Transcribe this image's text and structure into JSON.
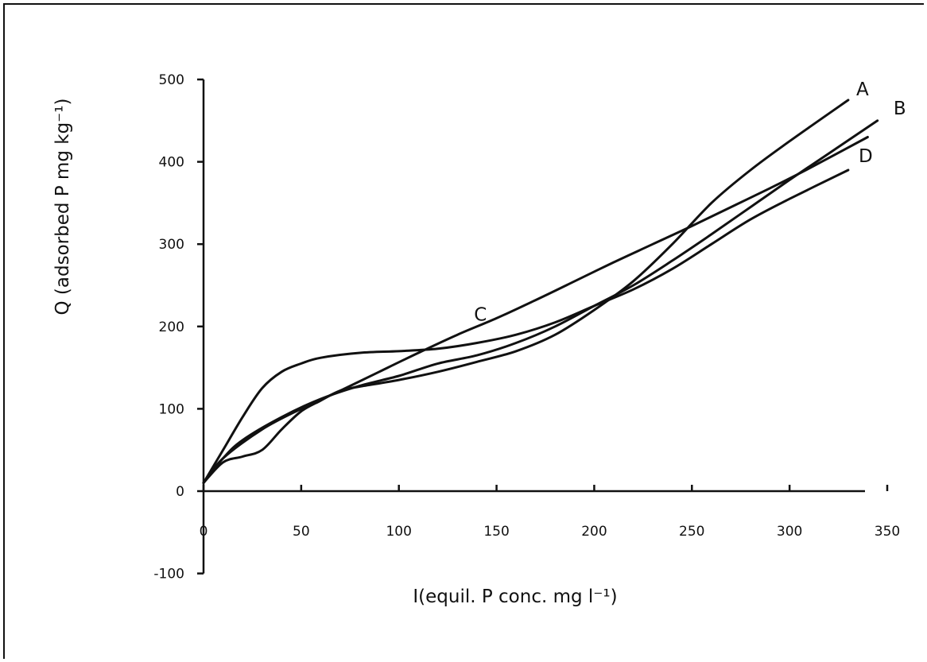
{
  "chart_data": {
    "type": "line",
    "title": "",
    "xlabel": "I(equil. P conc. mg l⁻¹)",
    "ylabel": "Q (adsorbed P mg kg⁻¹)",
    "xlim": [
      0,
      350
    ],
    "ylim": [
      -100,
      500
    ],
    "xticks": [
      0,
      50,
      100,
      150,
      200,
      250,
      300,
      350
    ],
    "yticks": [
      -100,
      0,
      100,
      200,
      300,
      400,
      500
    ],
    "xtick_labels": [
      "0",
      "50",
      "100",
      "150",
      "200",
      "250",
      "300",
      "350"
    ],
    "ytick_labels": [
      "-100",
      "0",
      "100",
      "200",
      "300",
      "400",
      "500"
    ],
    "grid": false,
    "legend": "none",
    "series": [
      {
        "name": "A",
        "x": [
          0,
          10,
          20,
          30,
          40,
          50,
          60,
          70,
          80,
          100,
          120,
          140,
          160,
          180,
          200,
          220,
          240,
          260,
          280,
          300,
          330
        ],
        "y": [
          10,
          35,
          42,
          50,
          75,
          97,
          110,
          122,
          127,
          135,
          145,
          157,
          170,
          190,
          220,
          255,
          300,
          350,
          390,
          425,
          475
        ]
      },
      {
        "name": "B",
        "x": [
          0,
          10,
          20,
          40,
          60,
          80,
          100,
          120,
          140,
          160,
          180,
          200,
          220,
          240,
          260,
          280,
          300,
          320,
          345
        ],
        "y": [
          10,
          40,
          62,
          90,
          112,
          128,
          140,
          155,
          165,
          180,
          200,
          225,
          250,
          280,
          312,
          345,
          378,
          410,
          450
        ]
      },
      {
        "name": "C",
        "x": [
          0,
          10,
          30,
          50,
          70,
          90,
          110,
          130,
          150,
          170,
          190,
          210,
          230,
          250,
          270,
          290,
          310,
          340
        ],
        "y": [
          10,
          40,
          75,
          100,
          122,
          145,
          168,
          190,
          210,
          232,
          255,
          278,
          300,
          322,
          345,
          368,
          392,
          430
        ]
      },
      {
        "name": "D",
        "x": [
          0,
          10,
          20,
          30,
          40,
          50,
          60,
          80,
          100,
          120,
          140,
          160,
          180,
          200,
          220,
          240,
          260,
          280,
          300,
          330
        ],
        "y": [
          10,
          50,
          90,
          125,
          145,
          155,
          162,
          168,
          170,
          173,
          180,
          190,
          205,
          225,
          245,
          270,
          300,
          330,
          355,
          390
        ]
      }
    ]
  }
}
